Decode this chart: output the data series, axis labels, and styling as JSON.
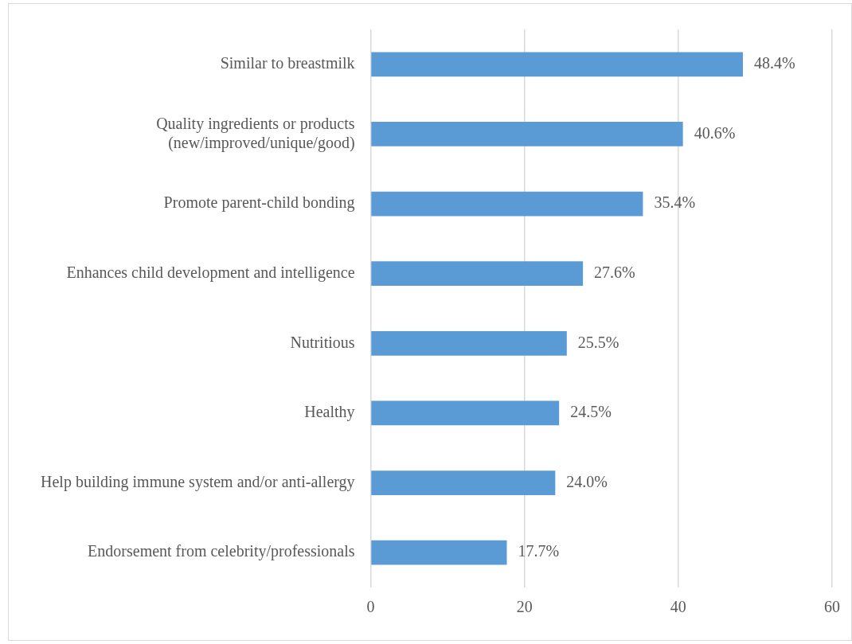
{
  "chart_data": {
    "type": "bar",
    "orientation": "horizontal",
    "categories": [
      "Similar to breastmilk",
      "Quality ingredients or products\n(new/improved/unique/good)",
      "Promote parent-child bonding",
      "Enhances child development and intelligence",
      "Nutritious",
      "Healthy",
      "Help building immune system and/or anti-allergy",
      "Endorsement from celebrity/professionals"
    ],
    "values": [
      48.4,
      40.6,
      35.4,
      27.6,
      25.5,
      24.5,
      24.0,
      17.7
    ],
    "value_labels": [
      "48.4%",
      "40.6%",
      "35.4%",
      "27.6%",
      "25.5%",
      "24.5%",
      "24.0%",
      "17.7%"
    ],
    "color": "#5b9bd5",
    "xlim": [
      0,
      60
    ],
    "xticks": [
      0,
      20,
      40,
      60
    ],
    "grid": "x",
    "legend": false
  }
}
